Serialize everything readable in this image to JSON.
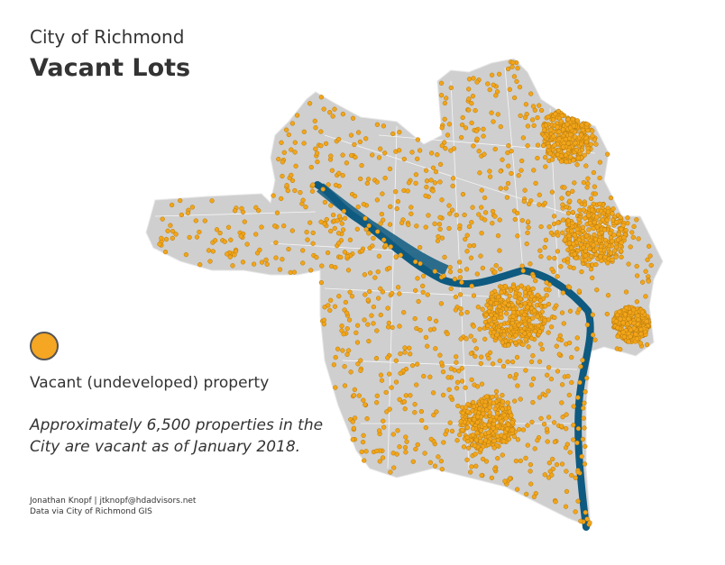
{
  "header": {
    "subtitle": "City of Richmond",
    "title": "Vacant Lots"
  },
  "legend": {
    "label": "Vacant (undeveloped) property"
  },
  "note": {
    "lines": [
      "Approximately 6,500 properties in the",
      "City are vacant as of January 2018."
    ]
  },
  "credits": [
    "Jonathan Knopf | jtknopf@hdadvisors.net",
    "Data via City of Richmond GIS"
  ]
}
